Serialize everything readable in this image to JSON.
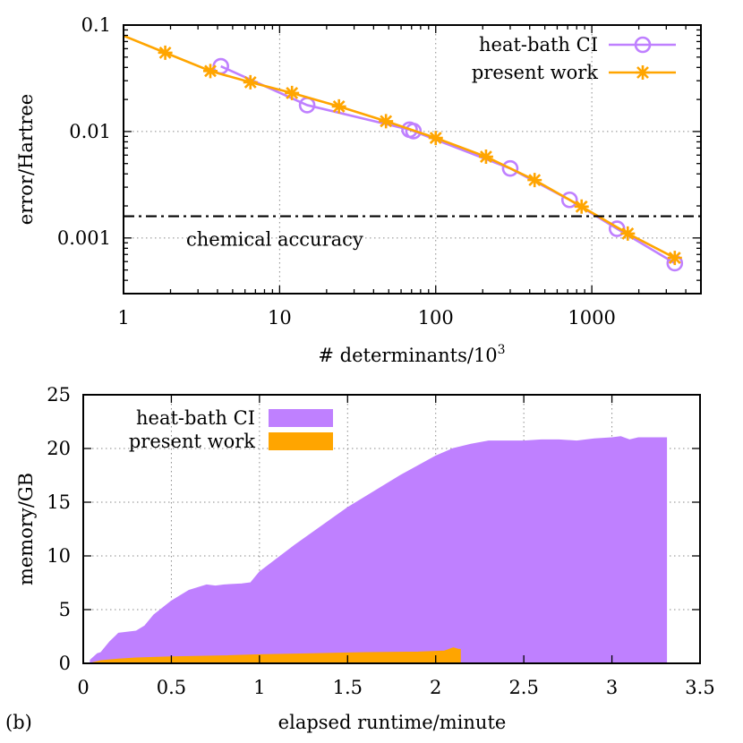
{
  "colors": {
    "heat_bath": "#bf80ff",
    "present": "#ffa500",
    "reference_line": "#000000"
  },
  "chart_data": [
    {
      "type": "line",
      "xscale": "log",
      "yscale": "log",
      "xlabel": "# determinants/10",
      "xlabel_superscript": "3",
      "ylabel": "error/Hartree",
      "xlim": [
        1,
        5000
      ],
      "ylim": [
        0.0003,
        0.1
      ],
      "x_ticks": [
        {
          "value": 1,
          "label": "1"
        },
        {
          "value": 10,
          "label": "10"
        },
        {
          "value": 100,
          "label": "100"
        },
        {
          "value": 1000,
          "label": "1000"
        }
      ],
      "y_ticks": [
        {
          "value": 0.001,
          "label": "0.001"
        },
        {
          "value": 0.01,
          "label": "0.01"
        },
        {
          "value": 0.1,
          "label": "0.1"
        }
      ],
      "grid": true,
      "legend_position": "top-right",
      "series": [
        {
          "name": "heat-bath CI",
          "marker": "circle",
          "color": "#bf80ff",
          "x": [
            4.2,
            15,
            68,
            72,
            300,
            720,
            1450,
            3400
          ],
          "y": [
            0.041,
            0.0177,
            0.0104,
            0.0101,
            0.0045,
            0.00228,
            0.00122,
            0.00058
          ]
        },
        {
          "name": "present work",
          "marker": "star",
          "color": "#ffa500",
          "x": [
            1.85,
            3.6,
            6.5,
            12,
            24,
            48,
            100,
            210,
            430,
            860,
            1700,
            3400
          ],
          "y": [
            0.055,
            0.037,
            0.029,
            0.023,
            0.0172,
            0.0125,
            0.0087,
            0.0058,
            0.0035,
            0.00197,
            0.0011,
            0.00065
          ]
        }
      ],
      "reference_lines": [
        {
          "y": 0.0016,
          "style": "dash-dot",
          "label": "chemical accuracy"
        }
      ]
    },
    {
      "type": "area",
      "panel_label": "(b)",
      "xlabel": "elapsed runtime/minute",
      "ylabel": "memory/GB",
      "xlim": [
        0,
        3.5
      ],
      "ylim": [
        0,
        25
      ],
      "x_ticks": [
        {
          "value": 0,
          "label": "0"
        },
        {
          "value": 0.5,
          "label": "0.5"
        },
        {
          "value": 1,
          "label": "1"
        },
        {
          "value": 1.5,
          "label": "1.5"
        },
        {
          "value": 2,
          "label": "2"
        },
        {
          "value": 2.5,
          "label": "2.5"
        },
        {
          "value": 3,
          "label": "3"
        },
        {
          "value": 3.5,
          "label": "3.5"
        }
      ],
      "y_ticks": [
        {
          "value": 0,
          "label": "0"
        },
        {
          "value": 5,
          "label": "5"
        },
        {
          "value": 10,
          "label": "10"
        },
        {
          "value": 15,
          "label": "15"
        },
        {
          "value": 20,
          "label": "20"
        },
        {
          "value": 25,
          "label": "25"
        }
      ],
      "grid": true,
      "legend_position": "top-left",
      "series": [
        {
          "name": "heat-bath CI",
          "color": "#bf80ff",
          "x": [
            0.04,
            0.08,
            0.1,
            0.15,
            0.2,
            0.3,
            0.35,
            0.4,
            0.5,
            0.6,
            0.7,
            0.75,
            0.8,
            0.9,
            0.95,
            1.0,
            1.2,
            1.5,
            1.8,
            2.0,
            2.1,
            2.2,
            2.3,
            2.5,
            2.6,
            2.7,
            2.8,
            2.9,
            3.0,
            3.05,
            3.1,
            3.15,
            3.2,
            3.3,
            3.31
          ],
          "y": [
            0.3,
            0.9,
            1.0,
            2.0,
            2.8,
            3.0,
            3.5,
            4.5,
            5.8,
            6.8,
            7.3,
            7.2,
            7.3,
            7.4,
            7.5,
            8.5,
            11.0,
            14.5,
            17.5,
            19.3,
            20.0,
            20.4,
            20.7,
            20.7,
            20.8,
            20.8,
            20.7,
            20.9,
            21.0,
            21.1,
            20.8,
            21.0,
            21.0,
            21.0,
            21.0
          ]
        },
        {
          "name": "present work",
          "color": "#ffa500",
          "x": [
            0.05,
            0.1,
            0.2,
            0.3,
            0.5,
            0.8,
            1.0,
            1.3,
            1.6,
            1.9,
            2.05,
            2.1,
            2.13,
            2.14
          ],
          "y": [
            0.05,
            0.25,
            0.4,
            0.5,
            0.6,
            0.7,
            0.8,
            0.9,
            1.0,
            1.05,
            1.15,
            1.45,
            1.3,
            1.3
          ]
        }
      ]
    }
  ]
}
